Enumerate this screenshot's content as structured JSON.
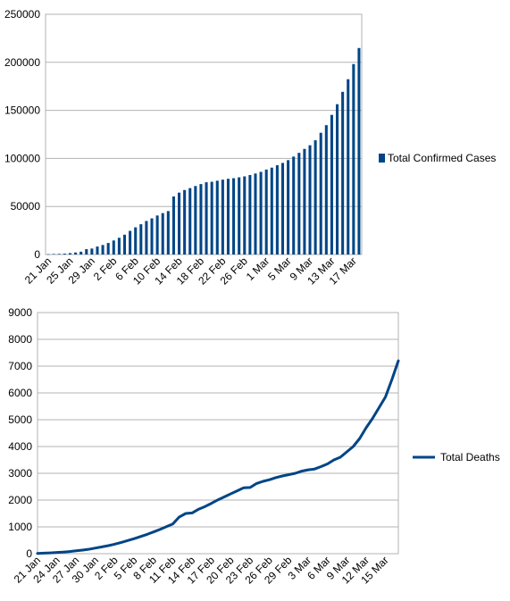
{
  "chart_data": [
    {
      "type": "bar",
      "title": "",
      "xlabel": "",
      "ylabel": "",
      "ylim": [
        0,
        250000
      ],
      "yticks": [
        "0",
        "50000",
        "100000",
        "150000",
        "200000",
        "250000"
      ],
      "grid": true,
      "legend_position": "right",
      "color": "#004586",
      "categories": [
        "21 Jan",
        "22 Jan",
        "23 Jan",
        "24 Jan",
        "25 Jan",
        "26 Jan",
        "27 Jan",
        "28 Jan",
        "29 Jan",
        "30 Jan",
        "31 Jan",
        "1 Feb",
        "2 Feb",
        "3 Feb",
        "4 Feb",
        "5 Feb",
        "6 Feb",
        "7 Feb",
        "8 Feb",
        "9 Feb",
        "10 Feb",
        "11 Feb",
        "12 Feb",
        "13 Feb",
        "14 Feb",
        "15 Feb",
        "16 Feb",
        "17 Feb",
        "18 Feb",
        "19 Feb",
        "20 Feb",
        "21 Feb",
        "22 Feb",
        "23 Feb",
        "24 Feb",
        "25 Feb",
        "26 Feb",
        "27 Feb",
        "28 Feb",
        "29 Feb",
        "1 Mar",
        "2 Mar",
        "3 Mar",
        "4 Mar",
        "5 Mar",
        "6 Mar",
        "7 Mar",
        "8 Mar",
        "9 Mar",
        "10 Mar",
        "11 Mar",
        "12 Mar",
        "13 Mar",
        "14 Mar",
        "15 Mar",
        "16 Mar",
        "17 Mar",
        "18 Mar"
      ],
      "tick_labels": [
        "21 Jan",
        "25 Jan",
        "29 Jan",
        "2 Feb",
        "6 Feb",
        "10 Feb",
        "14 Feb",
        "18 Feb",
        "22 Feb",
        "26 Feb",
        "1 Mar",
        "5 Mar",
        "9 Mar",
        "13 Mar",
        "17 Mar"
      ],
      "series": [
        {
          "name": "Total Confirmed Cases",
          "values": [
            300,
            550,
            650,
            900,
            1400,
            2100,
            2900,
            5600,
            6200,
            8300,
            9900,
            12000,
            14600,
            17400,
            20600,
            24600,
            28300,
            31500,
            34900,
            37600,
            40600,
            43100,
            45200,
            60400,
            64400,
            67100,
            69100,
            71300,
            73300,
            75200,
            75700,
            76800,
            77900,
            78800,
            79400,
            80300,
            81300,
            82700,
            84300,
            86000,
            88400,
            90400,
            92900,
            95300,
            98200,
            101900,
            105800,
            109900,
            113700,
            118900,
            126700,
            134600,
            145300,
            156400,
            169300,
            182400,
            198200,
            214900
          ]
        }
      ]
    },
    {
      "type": "line",
      "title": "",
      "xlabel": "",
      "ylabel": "",
      "ylim": [
        0,
        9000
      ],
      "yticks": [
        "0",
        "1000",
        "2000",
        "3000",
        "4000",
        "5000",
        "6000",
        "7000",
        "8000",
        "9000"
      ],
      "grid": true,
      "legend_position": "right",
      "color": "#004586",
      "categories": [
        "21 Jan",
        "22 Jan",
        "23 Jan",
        "24 Jan",
        "25 Jan",
        "26 Jan",
        "27 Jan",
        "28 Jan",
        "29 Jan",
        "30 Jan",
        "31 Jan",
        "1 Feb",
        "2 Feb",
        "3 Feb",
        "4 Feb",
        "5 Feb",
        "6 Feb",
        "7 Feb",
        "8 Feb",
        "9 Feb",
        "10 Feb",
        "11 Feb",
        "12 Feb",
        "13 Feb",
        "14 Feb",
        "15 Feb",
        "16 Feb",
        "17 Feb",
        "18 Feb",
        "19 Feb",
        "20 Feb",
        "21 Feb",
        "22 Feb",
        "23 Feb",
        "24 Feb",
        "25 Feb",
        "26 Feb",
        "27 Feb",
        "28 Feb",
        "29 Feb",
        "1 Mar",
        "2 Mar",
        "3 Mar",
        "4 Mar",
        "5 Mar",
        "6 Mar",
        "7 Mar",
        "8 Mar",
        "9 Mar",
        "10 Mar",
        "11 Mar",
        "12 Mar",
        "13 Mar",
        "14 Mar",
        "15 Mar",
        "16 Mar",
        "17 Mar"
      ],
      "tick_labels": [
        "21 Jan",
        "24 Jan",
        "27 Jan",
        "30 Jan",
        "2 Feb",
        "5 Feb",
        "8 Feb",
        "11 Feb",
        "14 Feb",
        "17 Feb",
        "20 Feb",
        "23 Feb",
        "26 Feb",
        "29 Feb",
        "3 Mar",
        "6 Mar",
        "9 Mar",
        "12 Mar",
        "15 Mar"
      ],
      "series": [
        {
          "name": "Total Deaths",
          "values": [
            10,
            20,
            30,
            45,
            60,
            80,
            110,
            135,
            165,
            210,
            255,
            300,
            355,
            420,
            490,
            560,
            640,
            720,
            810,
            905,
            1010,
            1110,
            1370,
            1500,
            1520,
            1660,
            1760,
            1880,
            2010,
            2120,
            2235,
            2345,
            2460,
            2470,
            2620,
            2700,
            2760,
            2840,
            2900,
            2950,
            3000,
            3080,
            3130,
            3160,
            3250,
            3350,
            3500,
            3600,
            3800,
            4000,
            4300,
            4700,
            5050,
            5450,
            5850,
            6500,
            7200
          ]
        }
      ]
    }
  ]
}
